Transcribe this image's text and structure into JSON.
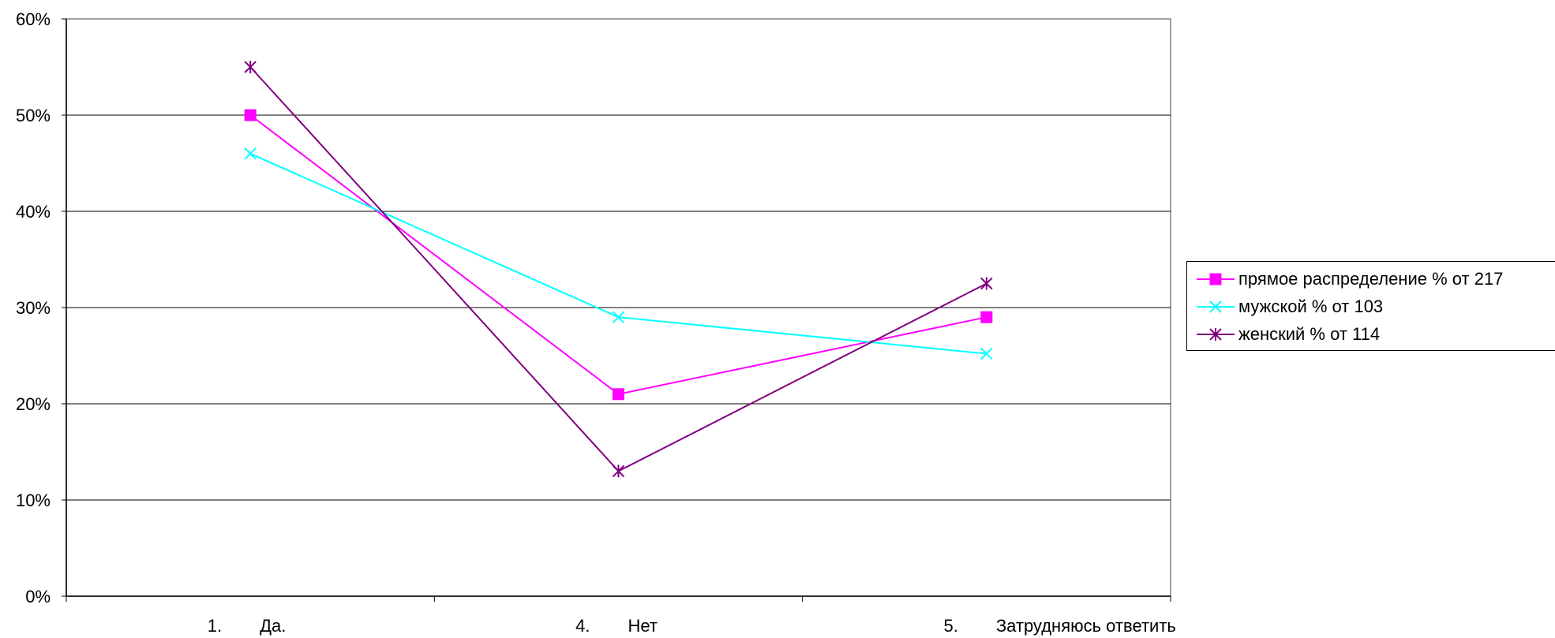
{
  "chart_data": {
    "type": "line",
    "title": "",
    "xlabel": "",
    "ylabel": "",
    "categories": [
      "Да.",
      "Нет",
      "Затрудняюсь ответить"
    ],
    "category_numbers": [
      "1.",
      "4.",
      "5."
    ],
    "ylim": [
      0,
      60
    ],
    "y_ticks": [
      0,
      10,
      20,
      30,
      40,
      50,
      60
    ],
    "y_tick_labels": [
      "0%",
      "10%",
      "20%",
      "30%",
      "40%",
      "50%",
      "60%"
    ],
    "grid": true,
    "legend_position": "right",
    "series": [
      {
        "name": "прямое распределение % от 217",
        "values": [
          50,
          21,
          29
        ],
        "color": "#ff00ff",
        "marker": "square"
      },
      {
        "name": "мужской % от 103",
        "values": [
          46,
          29,
          25.2
        ],
        "color": "#00ffff",
        "marker": "x"
      },
      {
        "name": "женский % от 114",
        "values": [
          55,
          13,
          32.5
        ],
        "color": "#800080",
        "marker": "star"
      }
    ]
  }
}
